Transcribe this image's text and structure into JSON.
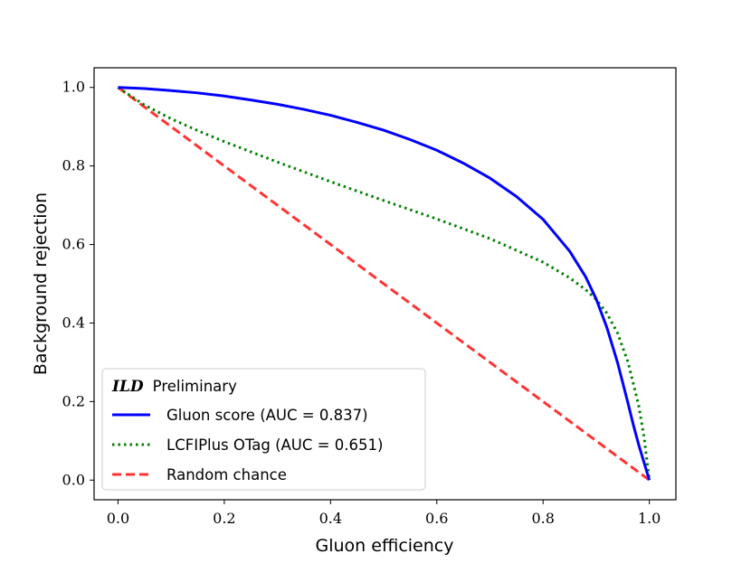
{
  "chart_data": {
    "type": "line",
    "xlabel": "Gluon efficiency",
    "ylabel": "Background rejection",
    "xlim": [
      -0.045,
      1.05
    ],
    "ylim": [
      -0.05,
      1.05
    ],
    "xticks": [
      0.0,
      0.2,
      0.4,
      0.6,
      0.8,
      1.0
    ],
    "yticks": [
      0.0,
      0.2,
      0.4,
      0.6,
      0.8,
      1.0
    ],
    "xtick_labels": [
      "0.0",
      "0.2",
      "0.4",
      "0.6",
      "0.8",
      "1.0"
    ],
    "ytick_labels": [
      "0.0",
      "0.2",
      "0.4",
      "0.6",
      "0.8",
      "1.0"
    ],
    "legend": {
      "placement": "lower-left",
      "title_bold": "ILD",
      "title_rest": "Preliminary"
    },
    "series": [
      {
        "name": "Gluon score (AUC = 0.837)",
        "color": "#0000ff",
        "style": "solid",
        "x": [
          0.0,
          0.05,
          0.1,
          0.15,
          0.2,
          0.25,
          0.3,
          0.35,
          0.4,
          0.45,
          0.5,
          0.55,
          0.6,
          0.65,
          0.7,
          0.75,
          0.8,
          0.85,
          0.88,
          0.9,
          0.92,
          0.94,
          0.96,
          0.97,
          0.98,
          0.99,
          1.0
        ],
        "y": [
          1.0,
          0.997,
          0.992,
          0.986,
          0.978,
          0.968,
          0.957,
          0.944,
          0.929,
          0.911,
          0.891,
          0.867,
          0.84,
          0.807,
          0.769,
          0.722,
          0.664,
          0.583,
          0.518,
          0.461,
          0.389,
          0.3,
          0.195,
          0.14,
          0.09,
          0.045,
          0.0
        ]
      },
      {
        "name": "LCFIPlus OTag (AUC = 0.651)",
        "color": "#008000",
        "style": "dotted",
        "x": [
          0.0,
          0.05,
          0.1,
          0.15,
          0.2,
          0.3,
          0.4,
          0.5,
          0.6,
          0.7,
          0.8,
          0.85,
          0.88,
          0.9,
          0.92,
          0.94,
          0.96,
          0.98,
          0.99,
          1.0
        ],
        "y": [
          1.0,
          0.955,
          0.92,
          0.89,
          0.862,
          0.81,
          0.76,
          0.712,
          0.665,
          0.615,
          0.555,
          0.515,
          0.485,
          0.46,
          0.425,
          0.375,
          0.3,
          0.19,
          0.11,
          0.0
        ]
      },
      {
        "name": "Random chance",
        "color": "#ff0000",
        "style": "dashed",
        "x": [
          0.0,
          1.0
        ],
        "y": [
          1.0,
          0.0
        ]
      }
    ]
  }
}
